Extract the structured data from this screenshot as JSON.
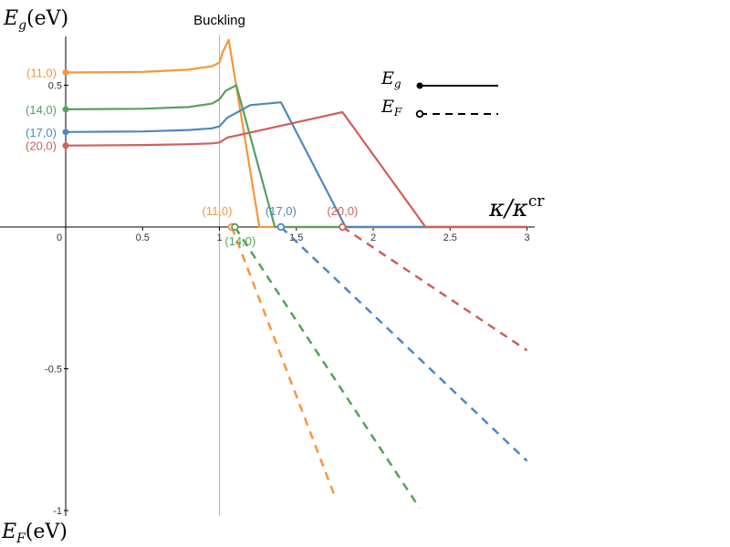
{
  "chart_data": {
    "type": "line",
    "annotation": "Buckling",
    "annotation_x": 1,
    "xlabel": {
      "main": "κ/κ",
      "sup": "cr"
    },
    "ylabel_top": {
      "main": "E",
      "sub": "g",
      "unit": "(eV)"
    },
    "ylabel_bottom": {
      "main": "E",
      "sub": "F",
      "unit": "(eV)"
    },
    "xlim": [
      -0.35,
      3.05
    ],
    "ylim": [
      -1.05,
      0.72
    ],
    "x_ticks": [
      {
        "value": 0,
        "label": "0"
      },
      {
        "value": 0.5,
        "label": "0.5"
      },
      {
        "value": 1,
        "label": "1"
      },
      {
        "value": 1.5,
        "label": "1.5"
      },
      {
        "value": 2,
        "label": "2"
      },
      {
        "value": 2.5,
        "label": "2.5"
      },
      {
        "value": 3,
        "label": "3"
      }
    ],
    "y_ticks": [
      {
        "value": 0.5,
        "label": "0.5"
      },
      {
        "value": -0.5,
        "label": "-0.5"
      },
      {
        "value": -1,
        "label": "-1"
      }
    ],
    "legend": {
      "placement": "top-right",
      "entries": [
        {
          "main": "E",
          "sub": "g",
          "style": "solid",
          "marker": "filled"
        },
        {
          "main": "E",
          "sub": "F",
          "style": "dashed",
          "marker": "open"
        }
      ]
    },
    "series": [
      {
        "name": "(11,0)",
        "color": "#f7963b",
        "gap": [
          [
            0,
            0.545
          ],
          [
            0.5,
            0.547
          ],
          [
            0.8,
            0.555
          ],
          [
            0.95,
            0.567
          ],
          [
            1.0,
            0.58
          ],
          [
            1.02,
            0.615
          ],
          [
            1.06,
            0.66
          ],
          [
            1.26,
            0
          ]
        ],
        "fermi_start": 1.08,
        "fermi": [
          [
            1.08,
            0
          ],
          [
            1.75,
            -0.95
          ]
        ]
      },
      {
        "name": "(14,0)",
        "color": "#55a15e",
        "gap": [
          [
            0,
            0.415
          ],
          [
            0.5,
            0.417
          ],
          [
            0.8,
            0.423
          ],
          [
            0.95,
            0.435
          ],
          [
            1.0,
            0.45
          ],
          [
            1.04,
            0.48
          ],
          [
            1.11,
            0.5
          ],
          [
            1.36,
            0
          ]
        ],
        "fermi_start": 1.1,
        "fermi": [
          [
            1.1,
            0
          ],
          [
            2.3,
            -0.99
          ]
        ]
      },
      {
        "name": "(17,0)",
        "color": "#4f87bf",
        "gap": [
          [
            0,
            0.335
          ],
          [
            0.5,
            0.337
          ],
          [
            0.8,
            0.342
          ],
          [
            0.95,
            0.348
          ],
          [
            1.0,
            0.355
          ],
          [
            1.05,
            0.385
          ],
          [
            1.2,
            0.43
          ],
          [
            1.4,
            0.44
          ],
          [
            1.82,
            0
          ]
        ],
        "fermi_start": 1.4,
        "fermi": [
          [
            1.4,
            0
          ],
          [
            3.0,
            -0.825
          ]
        ]
      },
      {
        "name": "(20,0)",
        "color": "#cf5f5a",
        "gap": [
          [
            0,
            0.287
          ],
          [
            0.5,
            0.289
          ],
          [
            0.8,
            0.292
          ],
          [
            0.95,
            0.295
          ],
          [
            1.0,
            0.298
          ],
          [
            1.05,
            0.315
          ],
          [
            1.8,
            0.405
          ],
          [
            2.34,
            0
          ]
        ],
        "fermi_start": 1.8,
        "fermi": [
          [
            1.8,
            0
          ],
          [
            3.0,
            -0.435
          ]
        ]
      }
    ]
  }
}
